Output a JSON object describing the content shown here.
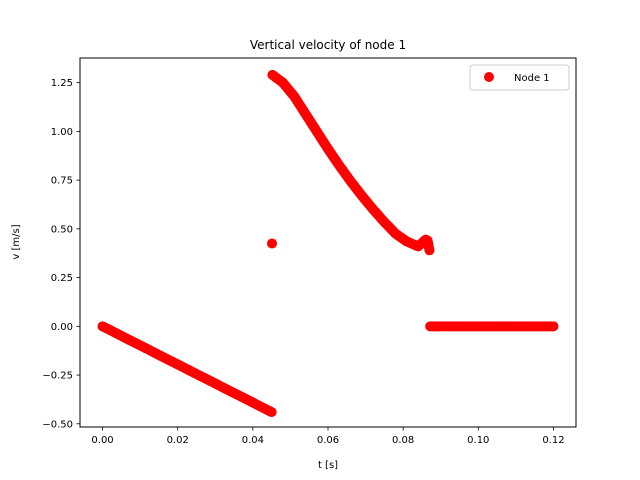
{
  "chart_data": {
    "type": "scatter",
    "title": "Vertical velocity of node 1",
    "xlabel": "t [s]",
    "ylabel": "v [m/s]",
    "xlim": [
      -0.006,
      0.126
    ],
    "ylim": [
      -0.5165,
      1.3765
    ],
    "xticks": [
      0.0,
      0.02,
      0.04,
      0.06,
      0.08,
      0.1,
      0.12
    ],
    "xtick_labels": [
      "0.00",
      "0.02",
      "0.04",
      "0.06",
      "0.08",
      "0.10",
      "0.12"
    ],
    "yticks": [
      -0.5,
      -0.25,
      0.0,
      0.25,
      0.5,
      0.75,
      1.0,
      1.25
    ],
    "ytick_labels": [
      "−0.50",
      "−0.25",
      "0.00",
      "0.25",
      "0.50",
      "0.75",
      "1.00",
      "1.25"
    ],
    "grid": false,
    "legend_position": "top-right",
    "series": [
      {
        "name": "Node 1",
        "color": "#ff0000",
        "marker": "circle",
        "x": [
          0.0,
          0.003,
          0.006,
          0.009,
          0.012,
          0.015,
          0.018,
          0.021,
          0.024,
          0.027,
          0.03,
          0.033,
          0.036,
          0.039,
          0.042,
          0.045,
          0.0451,
          0.0452,
          0.048,
          0.051,
          0.054,
          0.057,
          0.06,
          0.063,
          0.066,
          0.069,
          0.072,
          0.075,
          0.078,
          0.081,
          0.084,
          0.086,
          0.0865,
          0.087,
          0.0872,
          0.088,
          0.09,
          0.093,
          0.096,
          0.099,
          0.102,
          0.105,
          0.108,
          0.111,
          0.114,
          0.117,
          0.12
        ],
        "y": [
          0.0,
          -0.029,
          -0.059,
          -0.088,
          -0.117,
          -0.147,
          -0.176,
          -0.205,
          -0.235,
          -0.264,
          -0.293,
          -0.323,
          -0.352,
          -0.381,
          -0.411,
          -0.44,
          0.425,
          1.29,
          1.25,
          1.18,
          1.09,
          1.0,
          0.91,
          0.825,
          0.745,
          0.67,
          0.6,
          0.535,
          0.475,
          0.435,
          0.41,
          0.445,
          0.44,
          0.39,
          0.0,
          0.0,
          0.0,
          0.0,
          0.0,
          0.0,
          0.0,
          0.0,
          0.0,
          0.0,
          0.0,
          0.0,
          0.0
        ]
      }
    ]
  }
}
